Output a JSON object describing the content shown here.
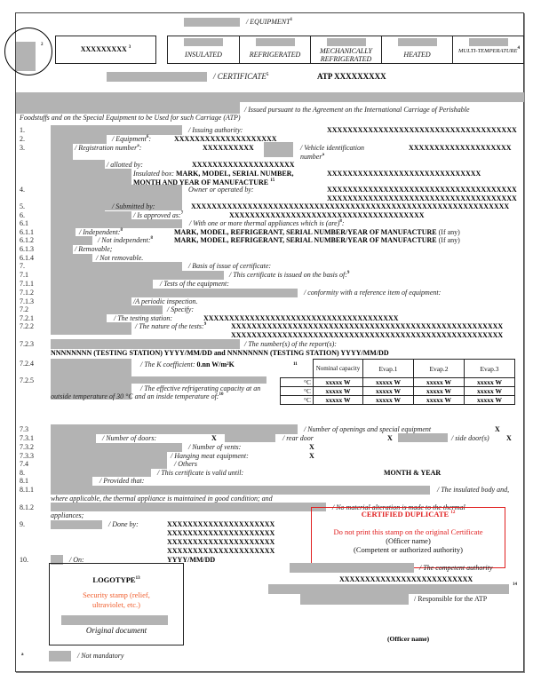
{
  "header": {
    "equipment": "/ EQUIPMENT",
    "equipment_sup": "1",
    "country_sup": "2",
    "code": "XXXXXXXXX",
    "code_sup": "3",
    "categories": [
      "INSULATED",
      "REFRIGERATED",
      "MECHANICALLY REFRIGERATED",
      "HEATED",
      "MULTI-TEMPERATURE"
    ],
    "multi_sup": "4",
    "certificate": "/ CERTIFICATE",
    "certificate_sup": "5",
    "atp_number": "ATP XXXXXXXXX",
    "issued_1": "/ Issued pursuant to the Agreement on the International Carriage of Perishable",
    "issued_2": "Foodstuffs and on the Special Equipment to be Used for such Carriage (ATP)"
  },
  "rows": {
    "r1": {
      "num": "1.",
      "label": "/ Issuing authority:",
      "value": "XXXXXXXXXXXXXXXXXXXXXXXXXXXXXXXXXXXXX"
    },
    "r2": {
      "num": "2.",
      "label": "/ Equipment",
      "sup": "6",
      "value": "XXXXXXXXXXXXXXXXXXXX"
    },
    "r3": {
      "num": "3.",
      "label": "/ Registration number",
      "sup": "a",
      "value": "XXXXXXXXXX",
      "vin_label_1": "/ Vehicle identification",
      "vin_label_2": "number",
      "vin_sup": "a",
      "vin_value": "XXXXXXXXXXXXXXXXXXXX"
    },
    "allotted": {
      "label": "/ allotted by:",
      "value": "XXXXXXXXXXXXXXXXXXXX"
    },
    "insulated": {
      "label": "Insulated box:",
      "bold_1": "MARK, MODEL, SERIAL NUMBER,",
      "bold_2": "MONTH AND YEAR OF MANUFACTURE",
      "sup": "15",
      "value": "XXXXXXXXXXXXXXXXXXXXXXXXXXXXXX"
    },
    "r4": {
      "num": "4.",
      "label": "Owner or operated by:",
      "value_1": "XXXXXXXXXXXXXXXXXXXXXXXXXXXXXXXXXXXXX",
      "value_2": "XXXXXXXXXXXXXXXXXXXXXXXXXXXXXXXXXXXXX"
    },
    "r5": {
      "num": "5.",
      "label": "/ Submitted by:",
      "value": "XXXXXXXXXXXXXXXXXXXXXXXXXXXXXXXXXXXXXXXXXXXXXXXXXXXXXXXXXXXXXX"
    },
    "r6": {
      "num": "6.",
      "label": "/ Is approved as:",
      "sup": "7",
      "value": "XXXXXXXXXXXXXXXXXXXXXXXXXXXXXXXXXXXXXX"
    },
    "r61": {
      "num": "6.1",
      "label": "/ With one or more thermal appliances which is (are)",
      "sup": "8"
    },
    "r611": {
      "num": "6.1.1",
      "label": "/ Independent:",
      "sup": "8",
      "value": "MARK, MODEL, REFRIGERANT, SERIAL NUMBER/YEAR OF MANUFACTURE",
      "note": "(If any)"
    },
    "r612": {
      "num": "6.1.2",
      "label": "/ Not independent:",
      "sup": "8",
      "value": "MARK, MODEL, REFRIGERANT,  SERIAL NUMBER/YEAR OF MANUFACTURE",
      "note": "(If any)"
    },
    "r613": {
      "num": "6.1.3",
      "label": "/ Removable;"
    },
    "r614": {
      "num": "6.1.4",
      "label": "/ Not removable."
    },
    "r7": {
      "num": "7.",
      "label": "/ Basis of issue of certificate:"
    },
    "r71": {
      "num": "7.1",
      "label": "/ This certificate is issued on the basis of:",
      "sup": "9"
    },
    "r711": {
      "num": "7.1.1",
      "label": "/ Tests of the equipment:"
    },
    "r712": {
      "num": "7.1.2",
      "label": "/ conformity with a reference item of equipment:"
    },
    "r713": {
      "num": "7.1.3",
      "label": "/A periodic inspection."
    },
    "r72": {
      "num": "7.2",
      "label": "/ Specify:"
    },
    "r721": {
      "num": "7.2.1",
      "label": "/ The testing station:",
      "value": "XXXXXXXXXXXXXXXXXXXXXXXXXXXXXXXXXXXXXX"
    },
    "r722": {
      "num": "7.2.2",
      "label": "/ The nature of the tests:",
      "sup": "9",
      "value_1": "XXXXXXXXXXXXXXXXXXXXXXXXXXXXXXXXXXXXXXXXXXXXXXXXXXXXX",
      "value_2": "XXXXXXXXXXXXXXXXXXXXXXXXXXXXXXXXXXXXXXXXXXXXXXXXXXXXX"
    },
    "r723": {
      "num": "7.2.3",
      "label": "/ The number(s) of the report(s):",
      "value": "NNNNNNNN  (TESTING STATION)  YYYY/MM/DD and  NNNNNNNN  (TESTING STATION)  YYYY/MM/DD"
    },
    "r724": {
      "num": "7.2.4",
      "label": "/ The K coefficient:",
      "value": "0.nn W/m²K"
    },
    "r725": {
      "num": "7.2.5",
      "label_1": "/ The effective refrigerating capacity at an",
      "label_2": "outside temperature of 30 °C and an inside temperature of:",
      "sup": "10"
    },
    "capacity_table": {
      "sup": "11",
      "headers": [
        "Nominal capacity",
        "Evap.1",
        "Evap.2",
        "Evap.3"
      ],
      "rows": [
        [
          "°C",
          "xxxxx W",
          "xxxxx W",
          "xxxxx W",
          "xxxxx W"
        ],
        [
          "°C",
          "xxxxx W",
          "xxxxx W",
          "xxxxx W",
          "xxxxx W"
        ],
        [
          "°C",
          "xxxxx W",
          "xxxxx W",
          "xxxxx W",
          "xxxxx W"
        ]
      ]
    },
    "r73": {
      "num": "7.3",
      "label": "/ Number of openings and special equipment",
      "value": "X"
    },
    "r731": {
      "num": "7.3.1",
      "label": "/ Number of doors:",
      "value": "X",
      "rear_label": "/ rear door",
      "rear_value": "X",
      "side_label": "/ side door(s)",
      "side_value": "X"
    },
    "r732": {
      "num": "7.3.2",
      "label": "/ Number of vents:",
      "value": "X"
    },
    "r733": {
      "num": "7.3.3",
      "label": "/ Hanging meat equipment:",
      "value": "X"
    },
    "r74": {
      "num": "7.4",
      "label": "/ Others"
    },
    "r8": {
      "num": "8.",
      "label": "/ This certificate is valid until:",
      "value": "MONTH & YEAR"
    },
    "r81": {
      "num": "8.1",
      "label": "/ Provided that:"
    },
    "r811": {
      "num": "8.1.1",
      "label": "/ The insulated body and,",
      "cont": "where applicable, the thermal appliance is maintained in good condition; and"
    },
    "r812": {
      "num": "8.1.2",
      "label": "/ No material alteration is made to the thermal",
      "cont": "appliances;"
    },
    "r9": {
      "num": "9.",
      "label": "/ Done by:",
      "values": [
        "XXXXXXXXXXXXXXXXXXXXX",
        "XXXXXXXXXXXXXXXXXXXXX",
        "XXXXXXXXXXXXXXXXXXXXX",
        "XXXXXXXXXXXXXXXXXXXXX"
      ]
    },
    "r10": {
      "num": "10.",
      "label": "/ On:",
      "value": "YYYY/MM/DD"
    }
  },
  "stamp": {
    "title": "CERTIFIED DUPLICATE",
    "sup": "12",
    "warning": "Do not print this stamp on the original Certificate",
    "officer": "(Officer name)",
    "authority": "(Competent or authorized authority)",
    "color": "#e02020"
  },
  "logotype": {
    "title": "LOGOTYPE",
    "sup": "13",
    "security_1": "Security stamp (relief,",
    "security_2": "ultraviolet, etc.)",
    "original": "Original document",
    "color": "#f06030"
  },
  "signature": {
    "competent": "/ The competent authority",
    "value": "XXXXXXXXXXXXXXXXXXXXXXXXXX",
    "sup": "14",
    "responsible": "/ Responsible for the ATP",
    "officer": "(Officer name)"
  },
  "footnote": {
    "mark": "a",
    "label": "/ Not mandatory"
  }
}
